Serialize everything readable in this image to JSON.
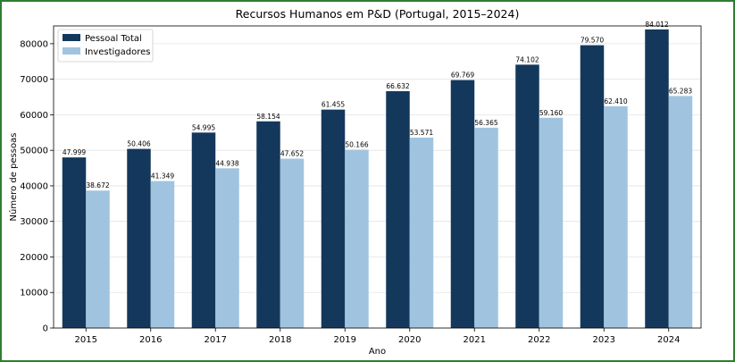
{
  "chart_data": {
    "type": "bar",
    "title": "Recursos Humanos em P&D (Portugal, 2015–2024)",
    "xlabel": "Ano",
    "ylabel": "Número de pessoas",
    "categories": [
      "2015",
      "2016",
      "2017",
      "2018",
      "2019",
      "2020",
      "2021",
      "2022",
      "2023",
      "2024"
    ],
    "series": [
      {
        "name": "Pessoal Total",
        "color": "#14385c",
        "values": [
          47999,
          50406,
          54995,
          58154,
          61455,
          66632,
          69769,
          74102,
          79570,
          84012
        ],
        "labels": [
          "47.999",
          "50.406",
          "54.995",
          "58.154",
          "61.455",
          "66.632",
          "69.769",
          "74.102",
          "79.570",
          "84.012"
        ]
      },
      {
        "name": "Investigadores",
        "color": "#a0c4e0",
        "values": [
          38672,
          41349,
          44938,
          47652,
          50166,
          53571,
          56365,
          59160,
          62410,
          65283
        ],
        "labels": [
          "38.672",
          "41.349",
          "44.938",
          "47.652",
          "50.166",
          "53.571",
          "56.365",
          "59.160",
          "62.410",
          "65.283"
        ]
      }
    ],
    "ylim": [
      0,
      85000
    ],
    "yticks": [
      "0",
      "10000",
      "20000",
      "30000",
      "40000",
      "50000",
      "60000",
      "70000",
      "80000"
    ],
    "ytick_values": [
      0,
      10000,
      20000,
      30000,
      40000,
      50000,
      60000,
      70000,
      80000
    ],
    "grid": "horizontal",
    "legend": "top-left"
  }
}
